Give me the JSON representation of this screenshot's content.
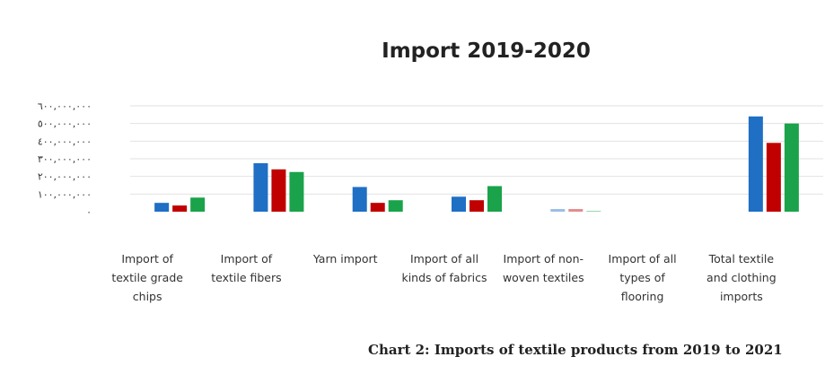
{
  "chart_data": {
    "type": "bar",
    "title": "Import 2019-2020",
    "xlabel": "",
    "ylabel": "",
    "ylim": [
      0,
      600000000
    ],
    "ytick_values": [
      0,
      100000000,
      200000000,
      300000000,
      400000000,
      500000000,
      600000000
    ],
    "ytick_labels": [
      "٠",
      "١٠٠,٠٠٠,٠٠٠",
      "٢٠٠,٠٠٠,٠٠٠",
      "٣٠٠,٠٠٠,٠٠٠",
      "٤٠٠,٠٠٠,٠٠٠",
      "٥٠٠,٠٠٠,٠٠٠",
      "٦٠٠,٠٠٠,٠٠٠"
    ],
    "grid": true,
    "legend": "none",
    "categories": [
      [
        "Import of",
        "textile grade",
        "chips"
      ],
      [
        "Import of",
        "textile fibers"
      ],
      [
        "Yarn import"
      ],
      [
        "Import of all",
        "kinds of fabrics"
      ],
      [
        "Import of non-",
        "woven textiles"
      ],
      [
        "Import of all",
        "types of",
        "flooring"
      ],
      [
        "Total textile",
        "and clothing",
        "imports"
      ]
    ],
    "series": [
      {
        "color": "#1f6fc5",
        "values": [
          50000000,
          275000000,
          140000000,
          85000000,
          15000000,
          0,
          540000000
        ]
      },
      {
        "color": "#c00000",
        "values": [
          35000000,
          240000000,
          50000000,
          65000000,
          15000000,
          0,
          390000000
        ]
      },
      {
        "color": "#1aa34a",
        "values": [
          80000000,
          225000000,
          65000000,
          145000000,
          5000000,
          0,
          500000000
        ]
      }
    ]
  },
  "caption": "Chart 2: Imports of textile products from 2019 to 2021"
}
